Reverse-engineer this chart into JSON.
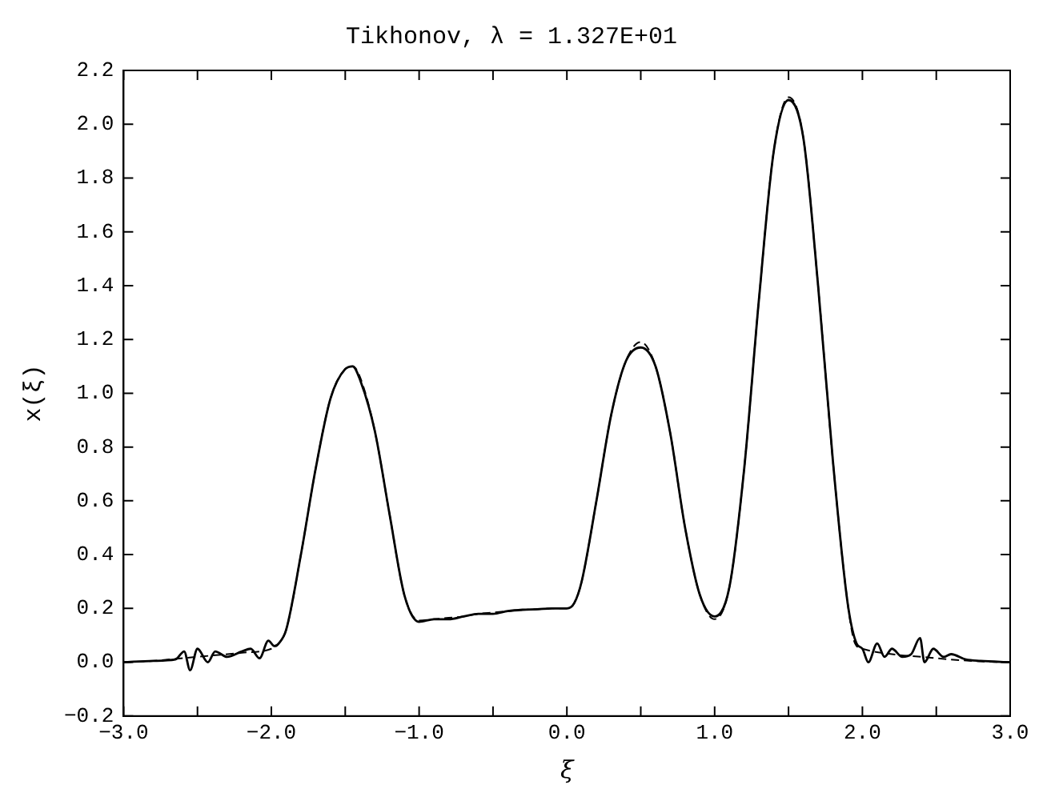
{
  "chart_data": {
    "type": "line",
    "title": "Tikhonov, λ = 1.327E+01",
    "xlabel": "ξ",
    "ylabel": "x(ξ)",
    "xlim": [
      -3,
      3
    ],
    "ylim": [
      -0.2,
      2.2
    ],
    "xticks": [
      {
        "value": -3,
        "label": "−3.0"
      },
      {
        "value": -2.5,
        "label": null
      },
      {
        "value": -2,
        "label": "−2.0"
      },
      {
        "value": -1.5,
        "label": null
      },
      {
        "value": -1,
        "label": "−1.0"
      },
      {
        "value": -0.5,
        "label": null
      },
      {
        "value": 0,
        "label": "0.0"
      },
      {
        "value": 0.5,
        "label": null
      },
      {
        "value": 1,
        "label": "1.0"
      },
      {
        "value": 1.5,
        "label": null
      },
      {
        "value": 2,
        "label": "2.0"
      },
      {
        "value": 2.5,
        "label": null
      },
      {
        "value": 3,
        "label": "3.0"
      }
    ],
    "yticks": [
      {
        "value": -0.2,
        "label": "−0.2"
      },
      {
        "value": 0,
        "label": "0.0"
      },
      {
        "value": 0.2,
        "label": "0.2"
      },
      {
        "value": 0.4,
        "label": "0.4"
      },
      {
        "value": 0.6,
        "label": "0.6"
      },
      {
        "value": 0.8,
        "label": "0.8"
      },
      {
        "value": 1,
        "label": "1.0"
      },
      {
        "value": 1.2,
        "label": "1.2"
      },
      {
        "value": 1.4,
        "label": "1.4"
      },
      {
        "value": 1.6,
        "label": "1.6"
      },
      {
        "value": 1.8,
        "label": "1.8"
      },
      {
        "value": 2,
        "label": "2.0"
      },
      {
        "value": 2.2,
        "label": "2.2"
      }
    ],
    "grid": false,
    "legend": false,
    "marker": "none",
    "series": [
      {
        "color": "#000000",
        "line_style": "dashed",
        "x": [
          -3,
          -2.8,
          -2.6,
          -2.4,
          -2.2,
          -2.0,
          -1.95,
          -1.9,
          -1.8,
          -1.7,
          -1.6,
          -1.5,
          -1.45,
          -1.4,
          -1.3,
          -1.2,
          -1.1,
          -1.0,
          -0.9,
          -0.8,
          -0.7,
          -0.6,
          -0.5,
          -0.4,
          -0.3,
          -0.2,
          -0.1,
          0,
          0.05,
          0.1,
          0.2,
          0.3,
          0.4,
          0.5,
          0.6,
          0.7,
          0.8,
          0.9,
          1.0,
          1.1,
          1.2,
          1.3,
          1.4,
          1.5,
          1.6,
          1.7,
          1.8,
          1.9,
          1.95,
          2.0,
          2.2,
          2.4,
          2.6,
          2.8,
          3.0
        ],
        "values": [
          0,
          0.005,
          0.015,
          0.025,
          0.035,
          0.05,
          0.07,
          0.12,
          0.4,
          0.72,
          0.98,
          1.09,
          1.1,
          1.06,
          0.86,
          0.55,
          0.25,
          0.155,
          0.16,
          0.165,
          0.17,
          0.18,
          0.185,
          0.19,
          0.195,
          0.197,
          0.2,
          0.2,
          0.22,
          0.3,
          0.6,
          0.92,
          1.12,
          1.19,
          1.1,
          0.85,
          0.5,
          0.25,
          0.16,
          0.28,
          0.72,
          1.35,
          1.9,
          2.1,
          1.95,
          1.4,
          0.75,
          0.22,
          0.07,
          0.05,
          0.03,
          0.02,
          0.01,
          0.003,
          0
        ]
      },
      {
        "color": "#000000",
        "line_style": "solid",
        "x": [
          -3,
          -2.8,
          -2.65,
          -2.59,
          -2.55,
          -2.5,
          -2.43,
          -2.38,
          -2.3,
          -2.2,
          -2.14,
          -2.08,
          -2.02,
          -1.98,
          -1.95,
          -1.9,
          -1.8,
          -1.7,
          -1.6,
          -1.5,
          -1.45,
          -1.4,
          -1.3,
          -1.2,
          -1.1,
          -1.0,
          -0.9,
          -0.8,
          -0.7,
          -0.6,
          -0.5,
          -0.4,
          -0.3,
          -0.2,
          -0.1,
          0,
          0.05,
          0.1,
          0.2,
          0.3,
          0.4,
          0.5,
          0.6,
          0.7,
          0.8,
          0.9,
          1.0,
          1.1,
          1.2,
          1.3,
          1.4,
          1.5,
          1.6,
          1.7,
          1.8,
          1.9,
          1.96,
          2.0,
          2.04,
          2.1,
          2.15,
          2.2,
          2.27,
          2.33,
          2.39,
          2.42,
          2.48,
          2.55,
          2.6,
          2.7,
          2.8,
          3.0
        ],
        "values": [
          0,
          0.005,
          0.01,
          0.04,
          -0.03,
          0.05,
          0.0,
          0.04,
          0.02,
          0.04,
          0.05,
          0.015,
          0.08,
          0.06,
          0.07,
          0.12,
          0.4,
          0.72,
          0.98,
          1.09,
          1.1,
          1.05,
          0.86,
          0.55,
          0.25,
          0.15,
          0.16,
          0.16,
          0.17,
          0.18,
          0.18,
          0.19,
          0.195,
          0.197,
          0.2,
          0.2,
          0.22,
          0.3,
          0.6,
          0.92,
          1.12,
          1.17,
          1.1,
          0.85,
          0.5,
          0.25,
          0.17,
          0.28,
          0.72,
          1.35,
          1.9,
          2.09,
          1.95,
          1.4,
          0.75,
          0.22,
          0.07,
          0.05,
          0.0,
          0.07,
          0.02,
          0.05,
          0.02,
          0.03,
          0.09,
          0.0,
          0.05,
          0.02,
          0.03,
          0.01,
          0.005,
          0
        ]
      }
    ]
  }
}
